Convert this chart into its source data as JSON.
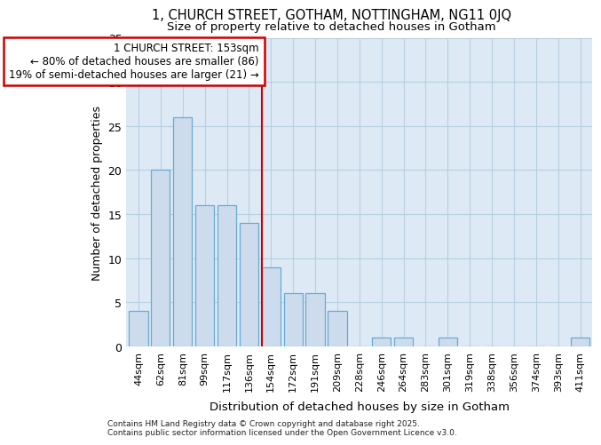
{
  "title_line1": "1, CHURCH STREET, GOTHAM, NOTTINGHAM, NG11 0JQ",
  "title_line2": "Size of property relative to detached houses in Gotham",
  "xlabel": "Distribution of detached houses by size in Gotham",
  "ylabel": "Number of detached properties",
  "categories": [
    "44sqm",
    "62sqm",
    "81sqm",
    "99sqm",
    "117sqm",
    "136sqm",
    "154sqm",
    "172sqm",
    "191sqm",
    "209sqm",
    "228sqm",
    "246sqm",
    "264sqm",
    "283sqm",
    "301sqm",
    "319sqm",
    "338sqm",
    "356sqm",
    "374sqm",
    "393sqm",
    "411sqm"
  ],
  "values": [
    4,
    20,
    26,
    16,
    16,
    14,
    9,
    6,
    6,
    4,
    0,
    1,
    1,
    0,
    1,
    0,
    0,
    0,
    0,
    0,
    1
  ],
  "bar_color": "#ccdcec",
  "bar_edge_color": "#6aaad4",
  "vline_index": 6,
  "annotation_line1": "1 CHURCH STREET: 153sqm",
  "annotation_line2": "← 80% of detached houses are smaller (86)",
  "annotation_line3": "19% of semi-detached houses are larger (21) →",
  "vline_color": "#cc0000",
  "ann_edge_color": "#cc0000",
  "ann_face_color": "#ffffff",
  "grid_color": "#b8cfe0",
  "bg_color": "#ddeaf5",
  "ylim": [
    0,
    35
  ],
  "yticks": [
    0,
    5,
    10,
    15,
    20,
    25,
    30,
    35
  ],
  "footer_line1": "Contains HM Land Registry data © Crown copyright and database right 2025.",
  "footer_line2": "Contains public sector information licensed under the Open Government Licence v3.0."
}
